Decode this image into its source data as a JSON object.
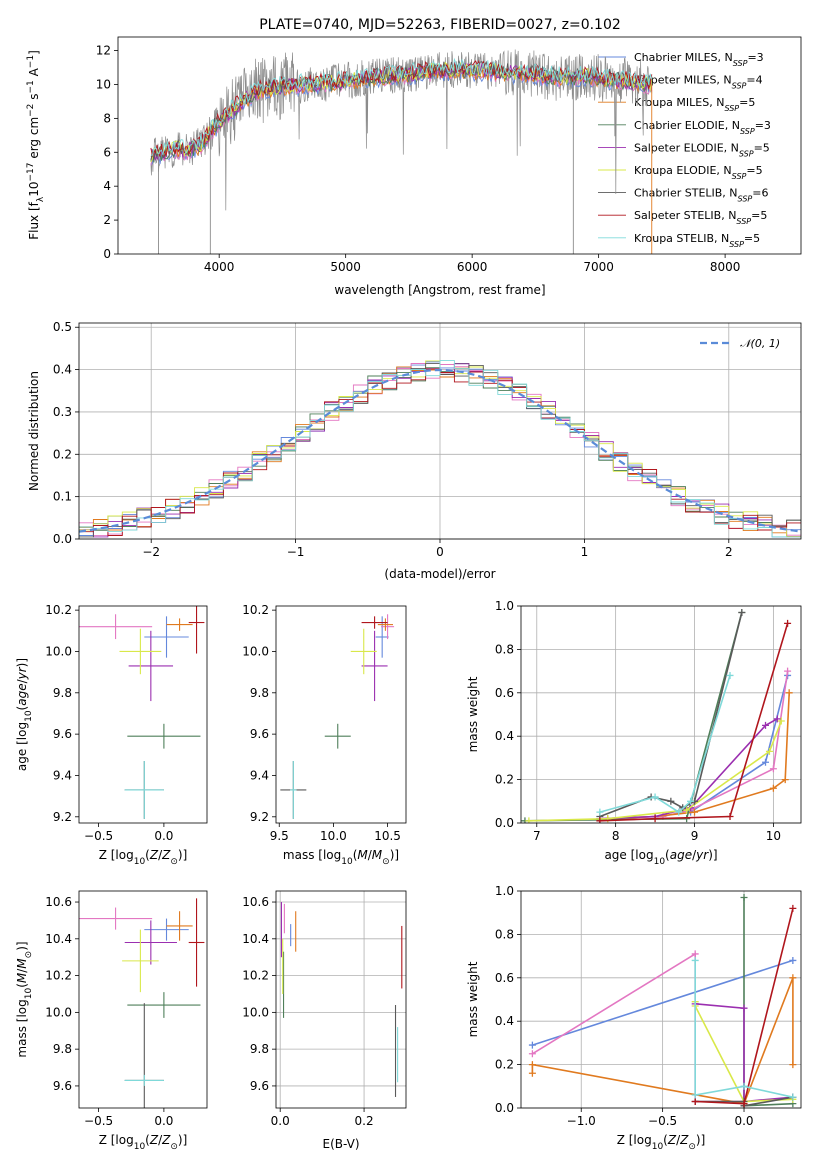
{
  "colors": [
    "#6488dc",
    "#e377c2",
    "#e07a1f",
    "#4f7f5a",
    "#9b2fb0",
    "#d9e84a",
    "#5a5a5a",
    "#b0161d",
    "#7fd9d9"
  ],
  "title": "PLATE=0740, MJD=52263, FIBERID=0027, z=0.102",
  "legend_entries": [
    "Chabrier MILES, N_SSP=3",
    "Salpeter MILES, N_SSP=4",
    "Kroupa MILES, N_SSP=5",
    "Chabrier ELODIE, N_SSP=3",
    "Salpeter ELODIE, N_SSP=5",
    "Kroupa ELODIE, N_SSP=5",
    "Chabrier STELIB, N_SSP=6",
    "Salpeter STELIB, N_SSP=5",
    "Kroupa STELIB, N_SSP=5"
  ],
  "chart_data": [
    {
      "id": "spectrum",
      "type": "line",
      "title": "PLATE=0740, MJD=52263, FIBERID=0027, z=0.102",
      "xlabel": "wavelength [Angstrom, rest frame]",
      "ylabel": "Flux [f_λ10^-17 erg cm^-2 s^-1 A^-1]",
      "xlim": [
        3200,
        8600
      ],
      "ylim": [
        0,
        12.8
      ],
      "xticks": [
        4000,
        5000,
        6000,
        7000,
        8000
      ],
      "yticks": [
        0,
        2,
        4,
        6,
        8,
        10,
        12
      ],
      "legend_position": "top-right",
      "data_envelope": {
        "x": [
          3460,
          3550,
          3650,
          3750,
          3850,
          3950,
          4050,
          4150,
          4300,
          4500,
          4700,
          4900,
          5100,
          5300,
          5500,
          5700,
          5900,
          6100,
          6300,
          6500,
          6700,
          6900,
          7100,
          7300,
          7420
        ],
        "y": [
          5.7,
          6.0,
          6.2,
          6.1,
          6.4,
          7.4,
          8.1,
          8.8,
          9.6,
          9.9,
          10.0,
          10.1,
          10.3,
          10.5,
          10.6,
          10.8,
          10.9,
          10.8,
          10.7,
          10.6,
          10.4,
          10.5,
          10.3,
          10.1,
          10.0
        ]
      }
    },
    {
      "id": "residuals",
      "type": "histogram",
      "xlabel": "(data-model)/error",
      "ylabel": "Normed distribution",
      "xlim": [
        -2.5,
        2.5
      ],
      "ylim": [
        0,
        0.51
      ],
      "xticks": [
        -2,
        -1,
        0,
        1,
        2
      ],
      "yticks": [
        0.0,
        0.1,
        0.2,
        0.3,
        0.4,
        0.5
      ],
      "legend": "N(0,1)",
      "legend_position": "top-right",
      "bin_width": 0.1
    },
    {
      "id": "age_vs_Z",
      "type": "scatter",
      "xlabel": "Z [log10(Z/Z_sun)]",
      "ylabel": "age [log10(age/yr)]",
      "xlim": [
        -0.65,
        0.33
      ],
      "ylim": [
        9.17,
        10.22
      ],
      "xticks": [
        -0.5,
        0.0
      ],
      "yticks": [
        9.2,
        9.4,
        9.6,
        9.8,
        10.0,
        10.2
      ],
      "points": [
        {
          "x": 0.02,
          "y": 10.07,
          "xerr": 0.17,
          "yerr": 0.1,
          "c": 0
        },
        {
          "x": -0.37,
          "y": 10.12,
          "xerr": 0.28,
          "yerr": 0.06,
          "c": 1
        },
        {
          "x": 0.12,
          "y": 10.13,
          "xerr": 0.1,
          "yerr": 0.03,
          "c": 2
        },
        {
          "x": 0.0,
          "y": 9.59,
          "xerr": 0.28,
          "yerr": 0.06,
          "c": 3
        },
        {
          "x": -0.1,
          "y": 9.93,
          "xerr": 0.17,
          "yerr": 0.17,
          "c": 4
        },
        {
          "x": -0.18,
          "y": 10.0,
          "xerr": 0.16,
          "yerr": 0.11,
          "c": 5
        },
        {
          "x": -0.15,
          "y": 9.33,
          "xerr": 0.15,
          "yerr": 0.14,
          "c": 6
        },
        {
          "x": 0.25,
          "y": 10.14,
          "xerr": 0.06,
          "yerr": 0.15,
          "c": 7
        },
        {
          "x": -0.15,
          "y": 9.33,
          "xerr": 0.15,
          "yerr": 0.14,
          "c": 8
        }
      ]
    },
    {
      "id": "age_vs_mass",
      "type": "scatter",
      "xlabel": "mass [log10(M/M_sun)]",
      "ylabel": "",
      "xlim": [
        9.47,
        10.67
      ],
      "ylim": [
        9.17,
        10.22
      ],
      "xticks": [
        9.5,
        10.0,
        10.5
      ],
      "yticks": [
        9.2,
        9.4,
        9.6,
        9.8,
        10.0,
        10.2
      ],
      "points": [
        {
          "x": 10.45,
          "y": 10.07,
          "xerr": 0.06,
          "yerr": 0.1,
          "c": 0
        },
        {
          "x": 10.5,
          "y": 10.12,
          "xerr": 0.06,
          "yerr": 0.06,
          "c": 1
        },
        {
          "x": 10.48,
          "y": 10.13,
          "xerr": 0.07,
          "yerr": 0.03,
          "c": 2
        },
        {
          "x": 10.04,
          "y": 9.59,
          "xerr": 0.12,
          "yerr": 0.06,
          "c": 3
        },
        {
          "x": 10.38,
          "y": 9.93,
          "xerr": 0.12,
          "yerr": 0.17,
          "c": 4
        },
        {
          "x": 10.28,
          "y": 10.0,
          "xerr": 0.12,
          "yerr": 0.11,
          "c": 5
        },
        {
          "x": 9.63,
          "y": 9.33,
          "xerr": 0.12,
          "yerr": 0.14,
          "c": 6
        },
        {
          "x": 10.38,
          "y": 10.14,
          "xerr": 0.12,
          "yerr": 0.03,
          "c": 7
        },
        {
          "x": 9.63,
          "y": 9.33,
          "xerr": 0.03,
          "yerr": 0.14,
          "c": 8
        }
      ]
    },
    {
      "id": "weight_vs_age",
      "type": "line",
      "xlabel": "age [log10(age/yr)]",
      "ylabel": "mass weight",
      "xlim": [
        6.8,
        10.35
      ],
      "ylim": [
        0,
        1.0
      ],
      "xticks": [
        7,
        8,
        9,
        10
      ],
      "yticks": [
        0.0,
        0.2,
        0.4,
        0.6,
        0.8,
        1.0
      ],
      "series": [
        {
          "c": 0,
          "x": [
            8.95,
            9.9,
            10.18
          ],
          "y": [
            0.05,
            0.28,
            0.68
          ]
        },
        {
          "c": 1,
          "x": [
            7.8,
            8.6,
            8.95,
            10.0,
            10.18
          ],
          "y": [
            0.02,
            0.03,
            0.06,
            0.25,
            0.7
          ]
        },
        {
          "c": 2,
          "x": [
            7.9,
            8.5,
            9.0,
            10.0,
            10.15,
            10.2
          ],
          "y": [
            0.02,
            0.03,
            0.05,
            0.16,
            0.2,
            0.6
          ]
        },
        {
          "c": 3,
          "x": [
            6.85,
            8.9,
            9.6
          ],
          "y": [
            0.01,
            0.02,
            0.97
          ]
        },
        {
          "c": 4,
          "x": [
            7.8,
            8.5,
            8.95,
            9.9,
            10.05
          ],
          "y": [
            0.02,
            0.03,
            0.07,
            0.45,
            0.48
          ]
        },
        {
          "c": 5,
          "x": [
            6.9,
            7.9,
            8.9,
            9.95,
            10.1
          ],
          "y": [
            0.01,
            0.02,
            0.06,
            0.33,
            0.47
          ]
        },
        {
          "c": 6,
          "x": [
            7.8,
            8.45,
            8.7,
            8.85,
            9.0,
            9.6
          ],
          "y": [
            0.03,
            0.12,
            0.1,
            0.07,
            0.1,
            0.97
          ]
        },
        {
          "c": 7,
          "x": [
            7.8,
            8.5,
            9.45,
            10.18
          ],
          "y": [
            0.01,
            0.02,
            0.03,
            0.92
          ]
        },
        {
          "c": 8,
          "x": [
            7.8,
            8.5,
            8.8,
            8.95,
            9.45
          ],
          "y": [
            0.05,
            0.12,
            0.05,
            0.1,
            0.68
          ]
        }
      ]
    },
    {
      "id": "mass_vs_Z",
      "type": "scatter",
      "xlabel": "Z [log10(Z/Z_sun)]",
      "ylabel": "mass [log10(M/M_sun)]",
      "xlim": [
        -0.65,
        0.33
      ],
      "ylim": [
        9.48,
        10.66
      ],
      "xticks": [
        -0.5,
        0.0
      ],
      "yticks": [
        9.6,
        9.8,
        10.0,
        10.2,
        10.4,
        10.6
      ],
      "points": [
        {
          "x": 0.02,
          "y": 10.45,
          "xerr": 0.17,
          "yerr": 0.06,
          "c": 0
        },
        {
          "x": -0.37,
          "y": 10.51,
          "xerr": 0.28,
          "yerr": 0.06,
          "c": 1
        },
        {
          "x": 0.12,
          "y": 10.47,
          "xerr": 0.1,
          "yerr": 0.08,
          "c": 2
        },
        {
          "x": 0.0,
          "y": 10.04,
          "xerr": 0.28,
          "yerr": 0.07,
          "c": 3
        },
        {
          "x": -0.1,
          "y": 10.38,
          "xerr": 0.2,
          "yerr": 0.12,
          "c": 4
        },
        {
          "x": -0.18,
          "y": 10.28,
          "xerr": 0.14,
          "yerr": 0.17,
          "c": 5
        },
        {
          "x": -0.15,
          "y": 9.63,
          "xerr": 0.15,
          "yerr": 0.42,
          "c": 6
        },
        {
          "x": 0.25,
          "y": 10.38,
          "xerr": 0.06,
          "yerr": 0.24,
          "c": 7
        },
        {
          "x": -0.15,
          "y": 9.63,
          "xerr": 0.15,
          "yerr": 0.03,
          "c": 8
        }
      ]
    },
    {
      "id": "mass_vs_ebv",
      "type": "scatter",
      "xlabel": "E(B-V)",
      "ylabel": "",
      "xlim": [
        -0.01,
        0.3
      ],
      "ylim": [
        9.48,
        10.66
      ],
      "xticks": [
        0.0,
        0.2
      ],
      "yticks": [
        9.6,
        9.8,
        10.0,
        10.2,
        10.4,
        10.6
      ],
      "points": [
        {
          "x": 0.025,
          "y": 10.42,
          "xerr": 0.0,
          "yerr": 0.06,
          "c": 0
        },
        {
          "x": 0.01,
          "y": 10.51,
          "xerr": 0.0,
          "yerr": 0.08,
          "c": 1
        },
        {
          "x": 0.037,
          "y": 10.44,
          "xerr": 0.0,
          "yerr": 0.11,
          "c": 2
        },
        {
          "x": 0.008,
          "y": 10.15,
          "xerr": 0.0,
          "yerr": 0.18,
          "c": 3
        },
        {
          "x": 0.003,
          "y": 10.45,
          "xerr": 0.0,
          "yerr": 0.15,
          "c": 4
        },
        {
          "x": 0.006,
          "y": 10.25,
          "xerr": 0.0,
          "yerr": 0.15,
          "c": 5
        },
        {
          "x": 0.275,
          "y": 9.79,
          "xerr": 0.0,
          "yerr": 0.25,
          "c": 6
        },
        {
          "x": 0.29,
          "y": 10.3,
          "xerr": 0.0,
          "yerr": 0.17,
          "c": 7
        },
        {
          "x": 0.28,
          "y": 9.77,
          "xerr": 0.0,
          "yerr": 0.15,
          "c": 8
        }
      ]
    },
    {
      "id": "weight_vs_Z",
      "type": "line",
      "xlabel": "Z [log10(Z/Z_sun)]",
      "ylabel": "mass weight",
      "xlim": [
        -1.37,
        0.35
      ],
      "ylim": [
        0,
        1.0
      ],
      "xticks": [
        -1.0,
        -0.5,
        0.0
      ],
      "yticks": [
        0.0,
        0.2,
        0.4,
        0.6,
        0.8,
        1.0
      ],
      "series": [
        {
          "c": 0,
          "x": [
            -1.3,
            0.3
          ],
          "y": [
            0.29,
            0.68
          ]
        },
        {
          "c": 1,
          "x": [
            -1.3,
            -0.3,
            -0.3,
            0.0
          ],
          "y": [
            0.25,
            0.71,
            0.03,
            0.03
          ]
        },
        {
          "c": 2,
          "x": [
            -1.3,
            -1.3,
            0.0,
            0.3,
            0.3
          ],
          "y": [
            0.16,
            0.2,
            0.02,
            0.6,
            0.2
          ]
        },
        {
          "c": 3,
          "x": [
            0.0,
            0.0,
            0.3
          ],
          "y": [
            0.97,
            0.01,
            0.02
          ]
        },
        {
          "c": 4,
          "x": [
            -0.3,
            0.0,
            0.0,
            0.3
          ],
          "y": [
            0.48,
            0.46,
            0.03,
            0.05
          ]
        },
        {
          "c": 5,
          "x": [
            -0.3,
            -0.3,
            0.0,
            0.3
          ],
          "y": [
            0.49,
            0.47,
            0.03,
            0.04
          ]
        },
        {
          "c": 6,
          "x": [
            -0.3,
            0.0,
            0.0,
            0.3
          ],
          "y": [
            0.03,
            0.03,
            0.01,
            0.05
          ]
        },
        {
          "c": 7,
          "x": [
            -0.3,
            0.0,
            0.3
          ],
          "y": [
            0.03,
            0.02,
            0.92
          ]
        },
        {
          "c": 8,
          "x": [
            -0.3,
            -0.3,
            0.0,
            0.3
          ],
          "y": [
            0.68,
            0.06,
            0.1,
            0.05
          ]
        }
      ]
    }
  ]
}
